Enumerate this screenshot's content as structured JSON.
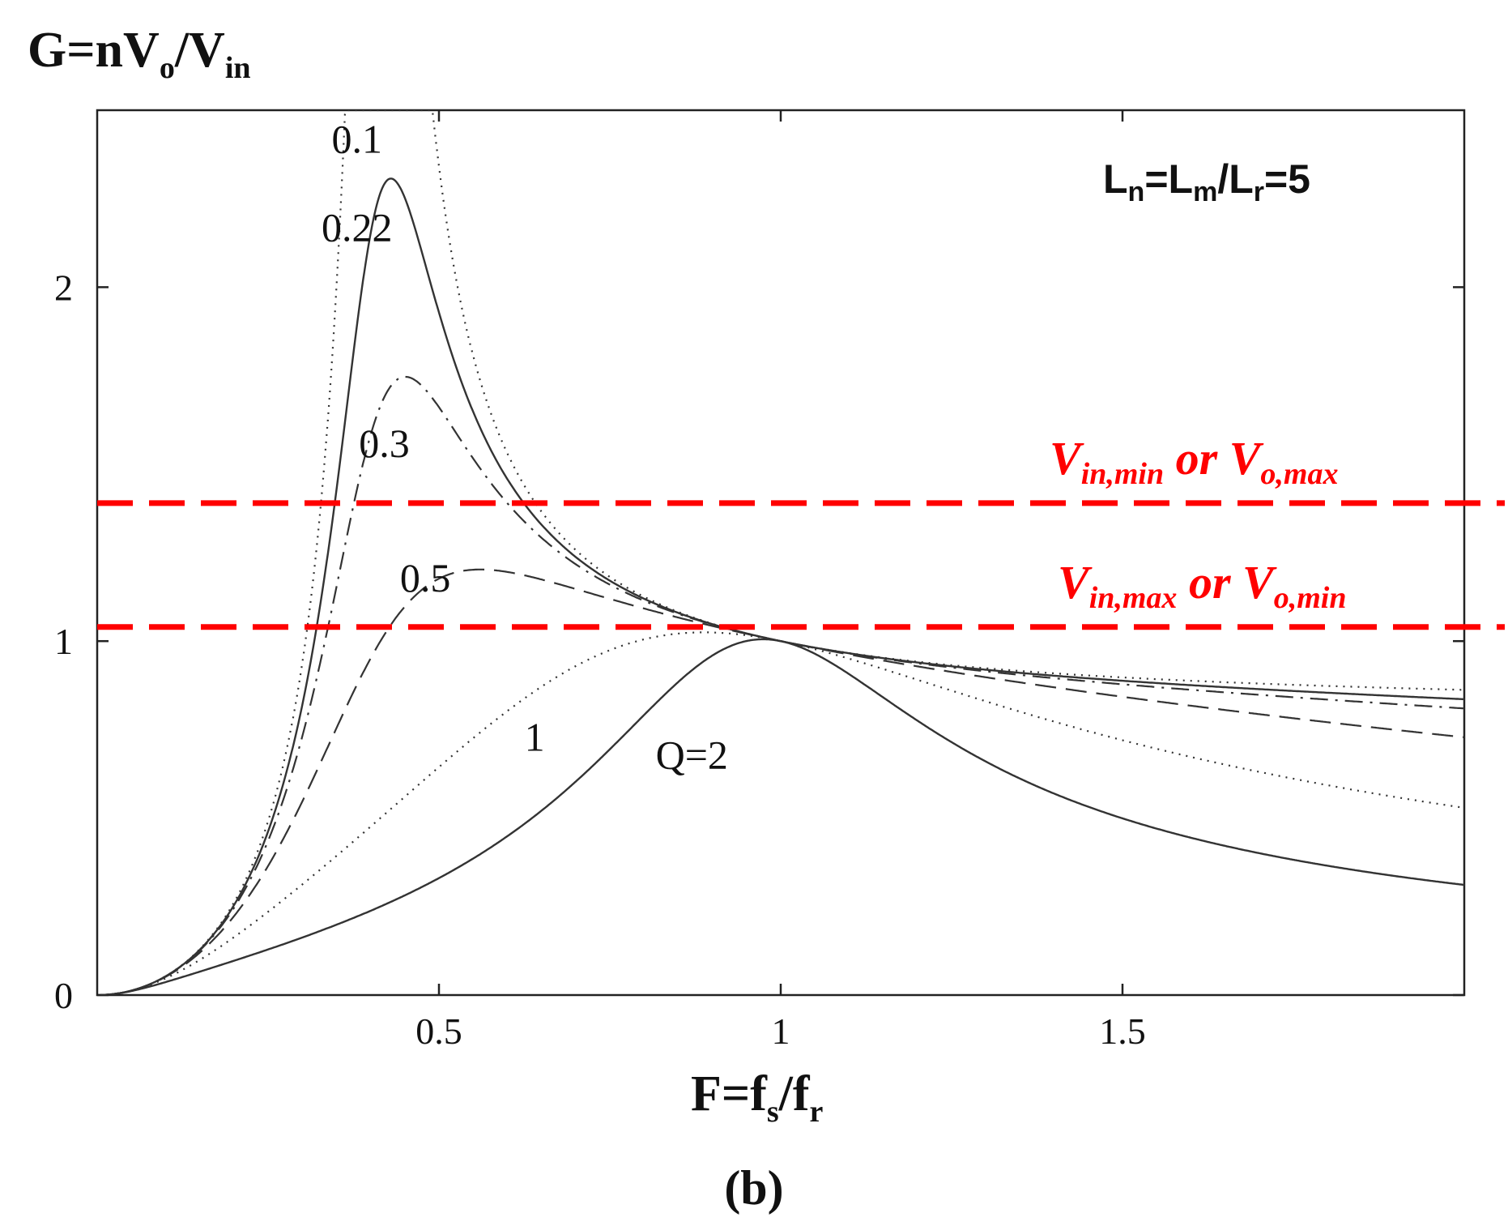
{
  "chart_data": {
    "type": "line",
    "title": "",
    "panel_label": "(b)",
    "ylabel": {
      "main": "G=nV",
      "sub1": "o",
      "mid": "/V",
      "sub2": "in"
    },
    "xlabel": {
      "main": "F=f",
      "sub1": "s",
      "mid": "/f",
      "sub2": "r"
    },
    "annotation": {
      "p1": "L",
      "s1": "n",
      "p2": "=L",
      "s2": "m",
      "p3": "/L",
      "s3": "r",
      "p4": "=5"
    },
    "xlim": [
      0,
      2.0
    ],
    "ylim": [
      0,
      2.5
    ],
    "x_ticks": [
      {
        "value": 0.5,
        "label": "0.5"
      },
      {
        "value": 1,
        "label": "1"
      },
      {
        "value": 1.5,
        "label": "1.5"
      }
    ],
    "y_ticks": [
      {
        "value": 0,
        "label": "0"
      },
      {
        "value": 1,
        "label": "1"
      },
      {
        "value": 2,
        "label": "2"
      }
    ],
    "Ln": 5,
    "series": [
      {
        "name": "0.1",
        "Q": 0.1,
        "style": "dotted",
        "label": "0.1",
        "label_at": [
          0.38,
          2.38
        ]
      },
      {
        "name": "0.22",
        "Q": 0.22,
        "style": "solid",
        "label": "0.22",
        "label_at": [
          0.38,
          2.13
        ]
      },
      {
        "name": "0.3",
        "Q": 0.3,
        "style": "dashdot",
        "label": "0.3",
        "label_at": [
          0.42,
          1.52
        ]
      },
      {
        "name": "0.5",
        "Q": 0.5,
        "style": "dashed",
        "label": "0.5",
        "label_at": [
          0.48,
          1.14
        ]
      },
      {
        "name": "1",
        "Q": 1,
        "style": "dotted",
        "label": "1",
        "label_at": [
          0.64,
          0.69
        ]
      },
      {
        "name": "Q=2",
        "Q": 2,
        "style": "solid",
        "label": "Q=2",
        "label_at": [
          0.87,
          0.64
        ]
      }
    ],
    "reference_lines": [
      {
        "name": "upper",
        "y": 1.39,
        "color": "#ff0000",
        "label": {
          "p1": "V",
          "s1": "in,min",
          "mid": " or V",
          "s2": "o,max"
        }
      },
      {
        "name": "lower",
        "y": 1.04,
        "color": "#ff0000",
        "label": {
          "p1": "V",
          "s1": "in,max",
          "mid": " or V",
          "s2": "o,min"
        }
      }
    ]
  }
}
